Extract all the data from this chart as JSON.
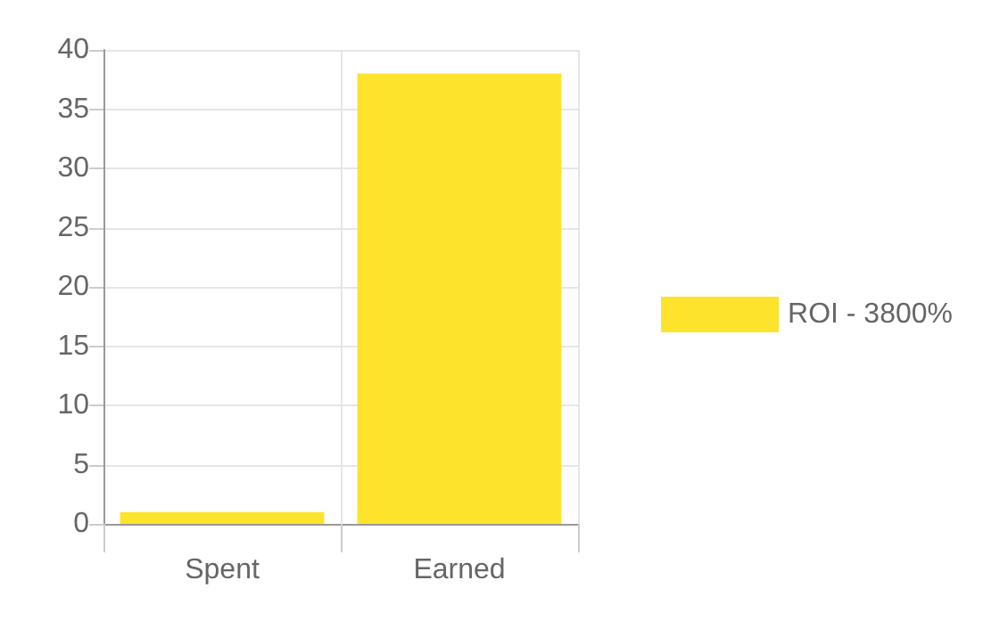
{
  "chart_data": {
    "type": "bar",
    "categories": [
      "Spent",
      "Earned"
    ],
    "series": [
      {
        "name": "ROI - 3800%",
        "color": "#fde32b",
        "values": [
          1,
          38
        ]
      }
    ],
    "ylim": [
      0,
      40
    ],
    "yticks": [
      0,
      5,
      10,
      15,
      20,
      25,
      30,
      35,
      40
    ],
    "grid": true,
    "legend": "right"
  }
}
